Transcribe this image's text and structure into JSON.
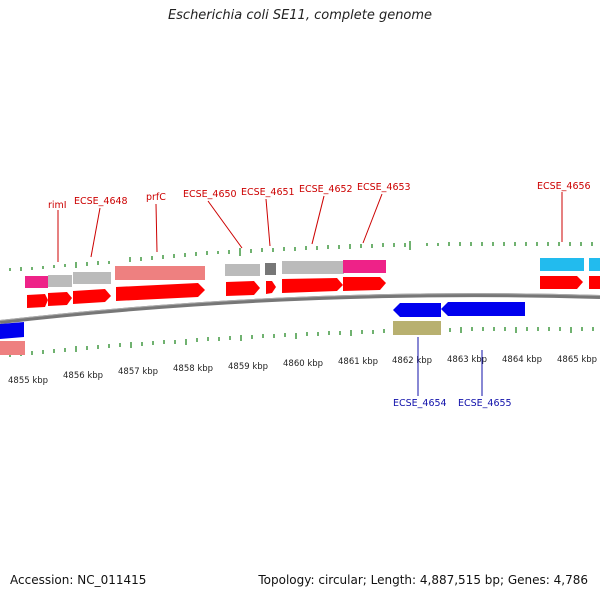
{
  "title": "Escherichia coli SE11, complete genome",
  "footer": {
    "accession": "Accession: NC_011415",
    "summary": "Topology: circular; Length: 4,887,515 bp; Genes: 4,786"
  },
  "axis_labels": [
    "4855 kbp",
    "4856 kbp",
    "4857 kbp",
    "4858 kbp",
    "4859 kbp",
    "4860 kbp",
    "4861 kbp",
    "4862 kbp",
    "4863 kbp",
    "4864 kbp",
    "4865 kbp"
  ],
  "gene_labels_forward": [
    "rimI",
    "ECSE_4648",
    "prfC",
    "ECSE_4650",
    "ECSE_4651",
    "ECSE_4652",
    "ECSE_4653",
    "ECSE_4656"
  ],
  "gene_labels_reverse": [
    "ECSE_4654",
    "ECSE_4655"
  ],
  "colors": {
    "forward_cds": "#ff0000",
    "reverse_cds": "#0000ee",
    "feature_pink": "#ee2288",
    "feature_grey": "#bbbbbb",
    "feature_salmon": "#ee8080",
    "feature_cyan": "#22bbee",
    "feature_olive": "#b8b070",
    "tick_green": "#228822",
    "forward_label": "#cc0000",
    "reverse_label": "#1010aa"
  }
}
